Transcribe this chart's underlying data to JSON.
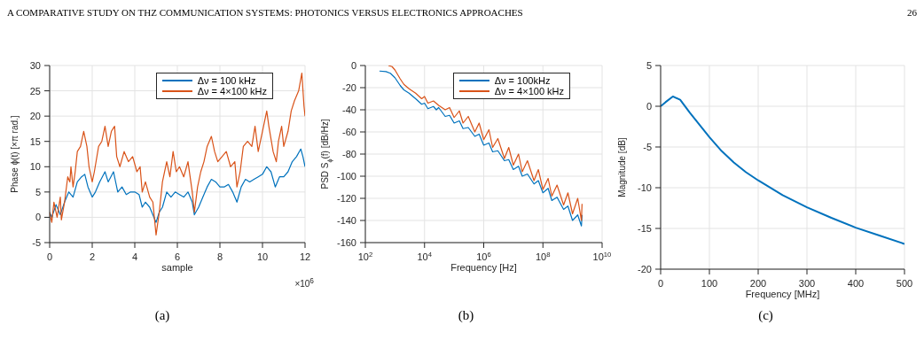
{
  "chart_data": [
    {
      "type": "line",
      "xlabel": "sample",
      "ylabel": "Phase ϕ(t) [×π rad.]",
      "annotations": [
        "A COMPARATIVE STUDY ON THZ COMMUNICATION SYSTEMS: PHOTONICS VERSUS ELECTRONICS APPROACHES",
        "26",
        "×10$^{6}$",
        "(a)"
      ],
      "xlim": [
        0,
        12
      ],
      "xticks": [
        0,
        2,
        4,
        6,
        8,
        10,
        12
      ],
      "ylim": [
        -5,
        30
      ],
      "yticks": [
        -5,
        0,
        5,
        10,
        15,
        20,
        25,
        30
      ],
      "grid": true,
      "legend": "top right",
      "series": [
        {
          "name": "Δν = 100 kHz",
          "color": "#0072bd",
          "x": [
            0,
            0.1,
            0.3,
            0.5,
            0.7,
            0.9,
            1.1,
            1.3,
            1.5,
            1.65,
            1.8,
            2.0,
            2.15,
            2.35,
            2.6,
            2.75,
            3.0,
            3.2,
            3.4,
            3.6,
            3.8,
            4.0,
            4.2,
            4.35,
            4.5,
            4.7,
            4.9,
            5.0,
            5.15,
            5.3,
            5.5,
            5.7,
            5.9,
            6.1,
            6.3,
            6.5,
            6.7,
            6.8,
            7.0,
            7.2,
            7.4,
            7.6,
            7.8,
            8.0,
            8.2,
            8.4,
            8.6,
            8.8,
            9.0,
            9.2,
            9.4,
            9.6,
            9.8,
            10.0,
            10.2,
            10.4,
            10.6,
            10.8,
            11.0,
            11.2,
            11.4,
            11.6,
            11.8,
            11.9,
            12.0
          ],
          "values": [
            1,
            0,
            2.5,
            0.5,
            3,
            5,
            4,
            7,
            8,
            8.5,
            6,
            4,
            5,
            7,
            9,
            7,
            9,
            5,
            6,
            4.5,
            5,
            5,
            4.5,
            2,
            3,
            2,
            0,
            -1,
            1,
            2,
            5,
            4,
            5,
            4.5,
            4,
            5,
            3,
            0.5,
            2,
            4,
            6,
            7.5,
            7,
            6,
            6,
            6.5,
            5,
            3,
            6,
            7.5,
            7,
            7.5,
            8,
            8.5,
            10,
            9,
            6,
            8,
            8,
            9,
            11,
            12,
            13.5,
            12,
            10
          ]
        },
        {
          "name": "Δν = 4×100 kHz",
          "color": "#d95319",
          "x": [
            0,
            0.1,
            0.2,
            0.35,
            0.5,
            0.55,
            0.7,
            0.85,
            0.95,
            1.0,
            1.1,
            1.2,
            1.3,
            1.45,
            1.6,
            1.75,
            1.85,
            2.0,
            2.1,
            2.3,
            2.45,
            2.6,
            2.75,
            2.9,
            3.05,
            3.15,
            3.3,
            3.5,
            3.7,
            3.9,
            4.1,
            4.25,
            4.35,
            4.5,
            4.7,
            4.85,
            5.0,
            5.15,
            5.3,
            5.5,
            5.65,
            5.8,
            5.95,
            6.1,
            6.3,
            6.5,
            6.7,
            6.8,
            6.95,
            7.1,
            7.25,
            7.4,
            7.6,
            7.75,
            7.9,
            8.1,
            8.3,
            8.5,
            8.7,
            8.8,
            8.95,
            9.1,
            9.3,
            9.5,
            9.65,
            9.8,
            10.0,
            10.2,
            10.3,
            10.5,
            10.65,
            10.75,
            10.9,
            11.0,
            11.2,
            11.35,
            11.5,
            11.7,
            11.85,
            11.95,
            12.0
          ],
          "values": [
            1,
            -1,
            3,
            0,
            4,
            -0.5,
            3,
            8,
            7,
            10,
            6,
            9,
            13,
            14,
            17,
            14,
            10,
            7,
            9,
            14,
            15,
            18,
            14,
            17,
            18,
            12,
            10,
            13,
            11,
            12,
            9,
            10,
            5,
            7,
            4,
            3,
            -3.5,
            1,
            7,
            11,
            8,
            13,
            9,
            10,
            8,
            11,
            5,
            1,
            6,
            9,
            11,
            14,
            16,
            13,
            11,
            12,
            13,
            10,
            11,
            6,
            9,
            14,
            15,
            14,
            18,
            13,
            17,
            21,
            18,
            13,
            11,
            15,
            18,
            14,
            17,
            21,
            23,
            25,
            28.5,
            22,
            20
          ]
        }
      ]
    },
    {
      "type": "line",
      "xlabel": "Frequency [Hz]",
      "ylabel": "PSD S$_{ϕ}$(f) [dB/Hz]",
      "annotations": [
        "(b)"
      ],
      "log": "x",
      "xlim": [
        100,
        10000000000
      ],
      "xticks": [
        {
          "value": 100,
          "label": "10$^{2}$"
        },
        {
          "value": 10000,
          "label": "10$^{4}$"
        },
        {
          "value": 1000000,
          "label": "10$^{6}$"
        },
        {
          "value": 100000000,
          "label": "10$^{8}$"
        },
        {
          "value": 10000000000,
          "label": "10$^{10}$"
        }
      ],
      "ylim": [
        -160,
        0
      ],
      "yticks": [
        -160,
        -140,
        -120,
        -100,
        -80,
        -60,
        -40,
        -20,
        0
      ],
      "grid": true,
      "legend": "top right",
      "series": [
        {
          "name": "Δν = 100kHz",
          "color": "#0072bd",
          "x": [
            300,
            500,
            700,
            1000,
            1500,
            2000,
            3000,
            5000,
            8000,
            10000,
            13000,
            20000,
            25000,
            30000,
            50000,
            70000,
            100000,
            150000,
            200000,
            300000,
            500000,
            700000,
            1000000,
            1500000,
            2000000,
            3000000,
            5000000,
            7000000,
            10000000,
            15000000,
            20000000,
            30000000,
            50000000,
            70000000,
            100000000,
            150000000,
            200000000,
            300000000,
            500000000,
            700000000,
            1000000000,
            1500000000,
            2000000000,
            2100000000
          ],
          "values": [
            -5,
            -5.5,
            -7,
            -11,
            -18,
            -22,
            -25,
            -30,
            -35,
            -34,
            -39,
            -37,
            -40,
            -38,
            -46,
            -45,
            -52,
            -50,
            -57,
            -56,
            -64,
            -62,
            -72,
            -70,
            -78,
            -77,
            -86,
            -85,
            -94,
            -91,
            -100,
            -98,
            -107,
            -104,
            -115,
            -111,
            -122,
            -119,
            -130,
            -127,
            -140,
            -135,
            -145,
            -135
          ]
        },
        {
          "name": "Δν = 4×100 kHz",
          "color": "#d95319",
          "x": [
            600,
            800,
            1000,
            1500,
            2000,
            3000,
            5000,
            8000,
            10000,
            13000,
            20000,
            30000,
            50000,
            70000,
            100000,
            150000,
            200000,
            300000,
            500000,
            700000,
            1000000,
            1500000,
            2000000,
            3000000,
            5000000,
            7000000,
            10000000,
            15000000,
            20000000,
            30000000,
            50000000,
            70000000,
            100000000,
            150000000,
            200000000,
            300000000,
            500000000,
            700000000,
            1000000000,
            1500000000,
            2000000000,
            2100000000
          ],
          "values": [
            0,
            -1,
            -4,
            -12,
            -17,
            -21,
            -25,
            -30,
            -28,
            -34,
            -32,
            -36,
            -40,
            -38,
            -47,
            -41,
            -52,
            -46,
            -60,
            -52,
            -67,
            -58,
            -74,
            -66,
            -84,
            -74,
            -90,
            -80,
            -96,
            -86,
            -104,
            -94,
            -112,
            -102,
            -118,
            -108,
            -126,
            -115,
            -134,
            -120,
            -140,
            -125
          ]
        }
      ]
    },
    {
      "type": "line",
      "xlabel": "Frequency [MHz]",
      "ylabel": "Magnitude [dB]",
      "annotations": [
        "(c)"
      ],
      "xlim": [
        0,
        500
      ],
      "xticks": [
        0,
        100,
        200,
        300,
        400,
        500
      ],
      "ylim": [
        -20,
        5
      ],
      "yticks": [
        -20,
        -15,
        -10,
        -5,
        0,
        5
      ],
      "grid": true,
      "series": [
        {
          "color": "#0072bd",
          "x": [
            0,
            10,
            25,
            40,
            60,
            80,
            100,
            125,
            150,
            175,
            200,
            250,
            300,
            350,
            400,
            450,
            500
          ],
          "values": [
            0,
            0.5,
            1.2,
            0.8,
            -0.8,
            -2.3,
            -3.8,
            -5.5,
            -6.9,
            -8.1,
            -9.1,
            -10.9,
            -12.4,
            -13.7,
            -14.9,
            -15.9,
            -16.9
          ]
        }
      ]
    }
  ]
}
